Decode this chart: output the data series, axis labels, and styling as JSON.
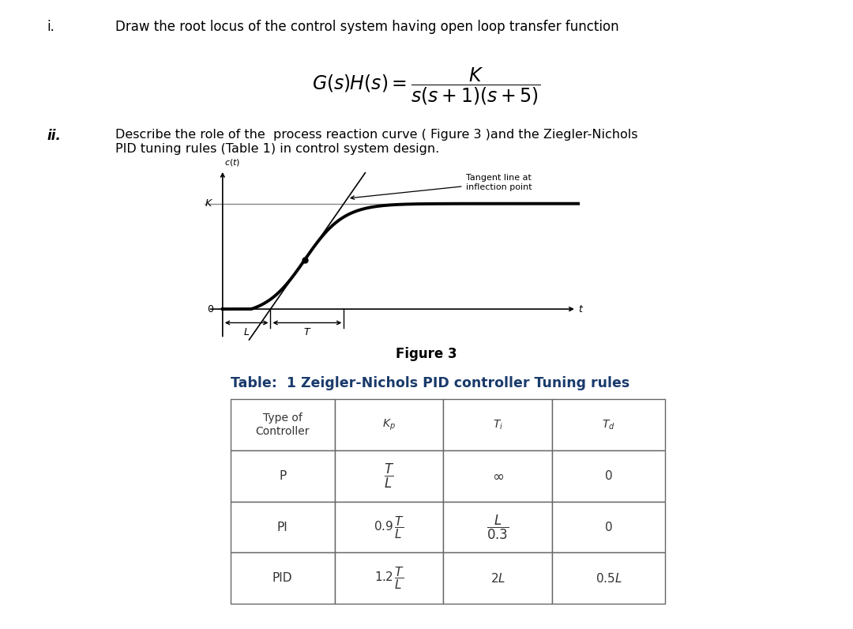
{
  "bg_color": "#ffffff",
  "text_color": "#000000",
  "blue_title_color": "#1a3a6b",
  "table_border_color": "#808080",
  "table_text_color": "#404040",
  "part_i_label": "i.",
  "part_i_text": "Draw the root locus of the control system having open loop transfer function",
  "part_ii_label": "ii.",
  "part_ii_text": "Describe the role of the  process reaction curve ( Figure 3 )and the Ziegler-Nichols\nPID tuning rules (Table 1) in control system design.",
  "figure_caption": "Figure 3",
  "table_title": "Table:  1 Zeigler-Nichols PID controller Tuning rules",
  "tangent_annotation": "Tangent line at\ninflection point"
}
